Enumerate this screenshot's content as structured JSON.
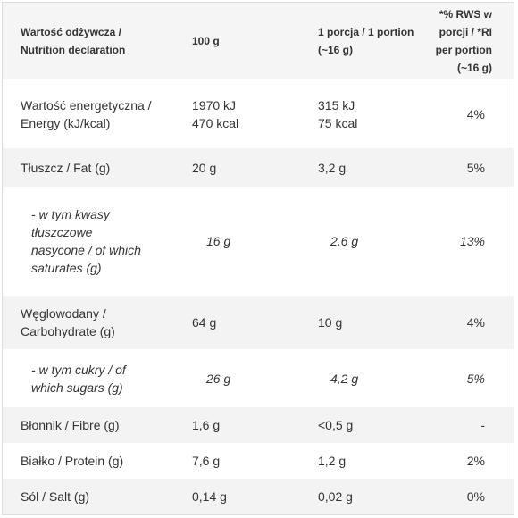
{
  "table": {
    "header": [
      "Wartość odżywcza / Nutrition declaration",
      "100 g",
      "1 porcja / 1 portion (~16 g)",
      "*% RWS w porcji / *RI per portion (~16 g)"
    ],
    "rows": [
      [
        [
          "Wartość energetyczna / Energy (kJ/kcal)"
        ],
        [
          "1970 kJ",
          "470 kcal"
        ],
        [
          "315 kJ",
          "75 kcal"
        ],
        [
          "4%"
        ]
      ],
      [
        [
          "Tłuszcz / Fat (g)"
        ],
        [
          "20 g"
        ],
        [
          "3,2 g"
        ],
        [
          "5%"
        ]
      ],
      [
        [
          "- w tym kwasy tłuszczowe nasycone / of which saturates (g)"
        ],
        [
          "16 g"
        ],
        [
          "2,6 g"
        ],
        [
          "13%"
        ]
      ],
      [
        [
          "Węglowodany / Carbohydrate (g)"
        ],
        [
          "64 g"
        ],
        [
          "10 g"
        ],
        [
          "4%"
        ]
      ],
      [
        [
          "- w tym cukry / of which sugars (g)"
        ],
        [
          "26 g"
        ],
        [
          "4,2 g"
        ],
        [
          "5%"
        ]
      ],
      [
        [
          "Błonnik / Fibre (g)"
        ],
        [
          "1,6 g"
        ],
        [
          "<0,5 g"
        ],
        [
          "-"
        ]
      ],
      [
        [
          "Białko / Protein (g)"
        ],
        [
          "7,6 g"
        ],
        [
          "1,2 g"
        ],
        [
          "2%"
        ]
      ],
      [
        [
          "Sól / Salt (g)"
        ],
        [
          "0,14 g"
        ],
        [
          "0,02 g"
        ],
        [
          "0%"
        ]
      ]
    ]
  }
}
